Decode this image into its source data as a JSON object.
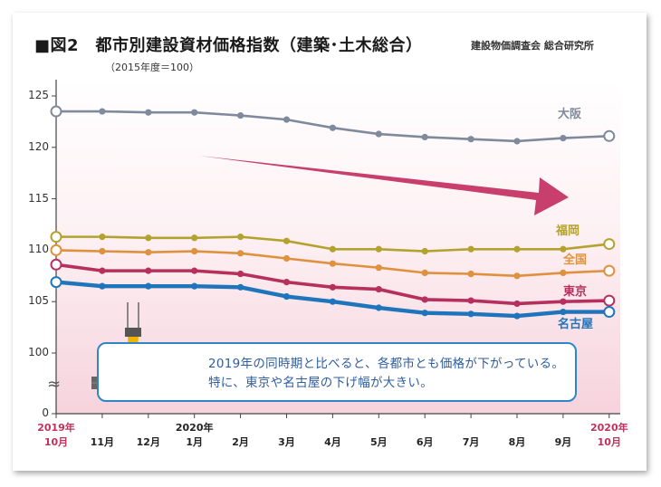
{
  "title": "■図2　都市別建設資材価格指数（建築･土木総合）",
  "source": "建設物価調査会 総合研究所",
  "subtitle": "（2015年度＝100）",
  "callout": "2019年の同時期と比べると、各都市とも価格が下がっている。特に、東京や名古屋の下げ幅が大きい。",
  "colors": {
    "osaka": "#7f8a9c",
    "fukuoka": "#b4a22e",
    "zenkoku": "#e0913e",
    "tokyo": "#b62f5d",
    "nagoya": "#1f75bb",
    "arrow": "#c83e6c",
    "callout_border": "#2f85c5",
    "callout_text": "#2f5d9e"
  },
  "chart_data": {
    "type": "line",
    "title": "都市別建設資材価格指数（建築･土木総合）",
    "ylabel": "（2015年度＝100）",
    "y_axis_break": true,
    "ylim": [
      100,
      125
    ],
    "yticks": [
      "125",
      "120",
      "115",
      "110",
      "105",
      "100",
      "0"
    ],
    "x_labels": [
      {
        "top": "2019年",
        "bottom": "10月",
        "accent": true
      },
      {
        "top": "",
        "bottom": "11月",
        "accent": false
      },
      {
        "top": "",
        "bottom": "12月",
        "accent": false
      },
      {
        "top": "2020年",
        "bottom": "1月",
        "accent": false
      },
      {
        "top": "",
        "bottom": "2月",
        "accent": false
      },
      {
        "top": "",
        "bottom": "3月",
        "accent": false
      },
      {
        "top": "",
        "bottom": "4月",
        "accent": false
      },
      {
        "top": "",
        "bottom": "5月",
        "accent": false
      },
      {
        "top": "",
        "bottom": "6月",
        "accent": false
      },
      {
        "top": "",
        "bottom": "7月",
        "accent": false
      },
      {
        "top": "",
        "bottom": "8月",
        "accent": false
      },
      {
        "top": "",
        "bottom": "9月",
        "accent": false
      },
      {
        "top": "2020年",
        "bottom": "10月",
        "accent": true
      }
    ],
    "series": [
      {
        "name": "大阪",
        "key": "osaka",
        "values": [
          123.5,
          123.5,
          123.4,
          123.4,
          123.1,
          122.7,
          121.9,
          121.3,
          121.0,
          120.8,
          120.6,
          120.9,
          121.1
        ]
      },
      {
        "name": "福岡",
        "key": "fukuoka",
        "values": [
          111.3,
          111.3,
          111.2,
          111.2,
          111.3,
          110.9,
          110.1,
          110.1,
          109.9,
          110.1,
          110.1,
          110.1,
          110.6
        ]
      },
      {
        "name": "全国",
        "key": "zenkoku",
        "values": [
          110.0,
          109.9,
          109.8,
          109.9,
          109.7,
          109.2,
          108.7,
          108.3,
          107.8,
          107.7,
          107.5,
          107.8,
          108.0
        ]
      },
      {
        "name": "東京",
        "key": "tokyo",
        "values": [
          108.6,
          108.0,
          108.0,
          108.0,
          107.7,
          106.9,
          106.4,
          106.2,
          105.2,
          105.1,
          104.8,
          105.0,
          105.1
        ]
      },
      {
        "name": "名古屋",
        "key": "nagoya",
        "values": [
          106.9,
          106.5,
          106.5,
          106.5,
          106.4,
          105.5,
          105.0,
          104.4,
          103.9,
          103.8,
          103.6,
          104.0,
          104.0
        ]
      }
    ]
  }
}
